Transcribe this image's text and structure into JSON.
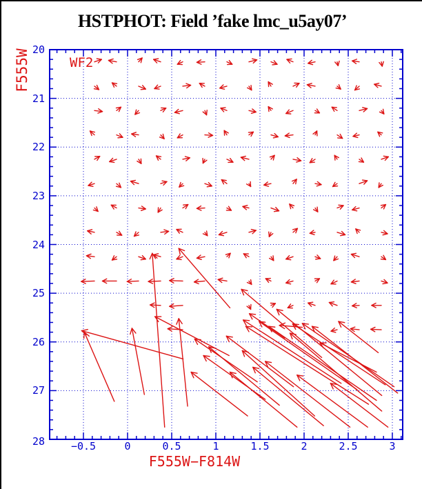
{
  "colors": {
    "axis_and_grid": "#0000cd",
    "tick_labels": "#0000cd",
    "data_vectors": "#dc1414",
    "axis_titles": "#dc1414",
    "title_text": "#000000",
    "background": "#ffffff"
  },
  "chart_data": {
    "type": "scatter",
    "subtype": "quiver-vector-field",
    "title": "HSTPHOT: Field ’fake lmc_u5ay07’",
    "xlabel": "F555W−F814W",
    "ylabel": "F555W",
    "annotation": "WF2",
    "xlim": [
      -0.89,
      3.11
    ],
    "ylim": [
      28,
      20
    ],
    "grid": "dotted blue lines at major ticks",
    "legend": "none",
    "x_tick_values": [
      -0.5,
      0,
      0.5,
      1,
      1.5,
      2,
      2.5,
      3
    ],
    "x_tick_labels": [
      "−0.5",
      "0",
      "0.5",
      "1",
      "1.5",
      "2",
      "2.5",
      "3"
    ],
    "y_tick_values": [
      20,
      21,
      22,
      23,
      24,
      25,
      26,
      27,
      28
    ],
    "y_tick_labels": [
      "20",
      "21",
      "22",
      "23",
      "24",
      "25",
      "26",
      "27",
      "28"
    ],
    "grid_y_values": [
      21,
      22,
      23,
      24,
      25,
      26,
      27
    ],
    "x_minor_step": 0.1,
    "y_minor_step": 0.2,
    "vectors_small": {
      "comment": "photometric bias vectors; tail at grid point (color,mag), displacement [dmag_color, dmag] (positive dmag = fainter/down)",
      "columns": [
        -0.375,
        -0.125,
        0.125,
        0.375,
        0.625,
        0.875,
        1.125,
        1.375,
        1.625,
        1.875,
        2.125,
        2.375,
        2.625,
        2.875
      ],
      "rows": [
        {
          "y": 20.25,
          "d": [
            [
              0.08,
              -0.05
            ],
            [
              -0.09,
              -0.03
            ],
            [
              0.04,
              -0.08
            ],
            [
              -0.08,
              -0.05
            ],
            [
              -0.06,
              0.05
            ],
            [
              -0.09,
              0.01
            ],
            [
              0.06,
              0.05
            ],
            [
              0.09,
              -0.04
            ],
            [
              0.07,
              0.05
            ],
            [
              -0.07,
              -0.05
            ],
            [
              -0.08,
              0.03
            ],
            [
              0.01,
              0.08
            ],
            [
              -0.08,
              -0.02
            ],
            [
              0.01,
              0.09
            ]
          ]
        },
        {
          "y": 20.75,
          "d": [
            [
              0.05,
              0.07
            ],
            [
              -0.05,
              -0.07
            ],
            [
              0.08,
              0.06
            ],
            [
              -0.07,
              0.05
            ],
            [
              0.09,
              -0.02
            ],
            [
              -0.06,
              -0.06
            ],
            [
              -0.08,
              0.04
            ],
            [
              0.03,
              0.08
            ],
            [
              -0.03,
              -0.09
            ],
            [
              0.07,
              -0.06
            ],
            [
              -0.09,
              -0.03
            ],
            [
              0.04,
              0.06
            ],
            [
              -0.05,
              0.08
            ],
            [
              -0.08,
              -0.04
            ]
          ]
        },
        {
          "y": 21.25,
          "d": [
            [
              0.09,
              0.02
            ],
            [
              0.05,
              -0.07
            ],
            [
              -0.04,
              0.08
            ],
            [
              0.06,
              -0.05
            ],
            [
              -0.09,
              0.04
            ],
            [
              0.02,
              0.09
            ],
            [
              -0.07,
              -0.05
            ],
            [
              0.08,
              0.03
            ],
            [
              -0.03,
              -0.08
            ],
            [
              -0.08,
              0.06
            ],
            [
              0.05,
              0.05
            ],
            [
              -0.06,
              -0.07
            ],
            [
              0.09,
              -0.04
            ],
            [
              0.03,
              0.07
            ]
          ]
        },
        {
          "y": 21.75,
          "d": [
            [
              -0.05,
              -0.08
            ],
            [
              0.07,
              0.05
            ],
            [
              -0.08,
              -0.02
            ],
            [
              0.04,
              0.08
            ],
            [
              -0.06,
              0.06
            ],
            [
              0.09,
              0.01
            ],
            [
              -0.03,
              -0.09
            ],
            [
              0.05,
              -0.06
            ],
            [
              0.08,
              0.04
            ],
            [
              -0.09,
              0.02
            ],
            [
              0.02,
              -0.08
            ],
            [
              0.06,
              0.07
            ],
            [
              -0.07,
              0.03
            ],
            [
              -0.04,
              -0.06
            ]
          ]
        },
        {
          "y": 22.25,
          "d": [
            [
              0.06,
              -0.06
            ],
            [
              -0.08,
              0.05
            ],
            [
              0.03,
              0.09
            ],
            [
              -0.05,
              -0.07
            ],
            [
              0.08,
              -0.03
            ],
            [
              -0.02,
              0.08
            ],
            [
              0.07,
              0.06
            ],
            [
              -0.09,
              -0.04
            ],
            [
              0.04,
              -0.08
            ],
            [
              0.09,
              0.03
            ],
            [
              -0.06,
              0.07
            ],
            [
              -0.03,
              -0.08
            ],
            [
              0.05,
              0.06
            ],
            [
              0.08,
              -0.05
            ]
          ]
        },
        {
          "y": 22.75,
          "d": [
            [
              -0.07,
              0.04
            ],
            [
              0.05,
              0.08
            ],
            [
              -0.09,
              -0.05
            ],
            [
              0.07,
              -0.04
            ],
            [
              -0.04,
              0.07
            ],
            [
              0.08,
              0.05
            ],
            [
              -0.06,
              -0.08
            ],
            [
              0.02,
              0.06
            ],
            [
              -0.08,
              0.03
            ],
            [
              0.04,
              -0.09
            ],
            [
              0.07,
              0.02
            ],
            [
              -0.05,
              0.06
            ],
            [
              0.09,
              -0.06
            ],
            [
              -0.03,
              0.08
            ]
          ]
        },
        {
          "y": 23.25,
          "d": [
            [
              0.04,
              0.07
            ],
            [
              -0.06,
              -0.06
            ],
            [
              0.08,
              0.02
            ],
            [
              -0.03,
              0.09
            ],
            [
              0.06,
              -0.07
            ],
            [
              -0.09,
              0.01
            ],
            [
              0.05,
              0.05
            ],
            [
              -0.07,
              -0.03
            ],
            [
              0.09,
              0.06
            ],
            [
              -0.04,
              -0.08
            ],
            [
              0.03,
              0.08
            ],
            [
              0.07,
              -0.05
            ],
            [
              -0.08,
              0.04
            ],
            [
              0.05,
              -0.07
            ]
          ]
        },
        {
          "y": 23.75,
          "d": [
            [
              -0.08,
              -0.03
            ],
            [
              0.06,
              0.06
            ],
            [
              -0.05,
              0.08
            ],
            [
              0.09,
              -0.02
            ],
            [
              -0.07,
              -0.06
            ],
            [
              0.03,
              0.07
            ],
            [
              -0.09,
              0.05
            ],
            [
              0.08,
              -0.04
            ],
            [
              -0.02,
              0.09
            ],
            [
              0.05,
              -0.08
            ],
            [
              -0.06,
              0.02
            ],
            [
              0.09,
              0.05
            ],
            [
              -0.04,
              -0.07
            ],
            [
              0.07,
              0.03
            ]
          ]
        },
        {
          "y": 24.25,
          "d": [
            [
              -0.09,
              -0.02
            ],
            [
              -0.05,
              0.07
            ],
            [
              0.08,
              0.05
            ],
            [
              -0.08,
              -0.04
            ],
            [
              -0.07,
              0.05
            ],
            [
              -0.09,
              0.03
            ],
            [
              0.04,
              -0.07
            ],
            [
              -0.06,
              -0.06
            ],
            [
              0.03,
              0.08
            ],
            [
              -0.08,
              0.05
            ],
            [
              0.06,
              0.04
            ],
            [
              -0.04,
              0.08
            ],
            [
              -0.09,
              -0.05
            ],
            [
              0.05,
              0.06
            ]
          ]
        },
        {
          "y": 24.75,
          "d": [
            [
              -0.15,
              0.01
            ],
            [
              -0.16,
              0.0
            ],
            [
              -0.13,
              0.01
            ],
            [
              -0.14,
              0.01
            ],
            [
              -0.15,
              -0.01
            ],
            [
              -0.12,
              0.02
            ],
            [
              -0.1,
              -0.03
            ],
            [
              0.03,
              0.07
            ],
            [
              -0.06,
              -0.05
            ],
            [
              -0.08,
              0.04
            ],
            [
              0.05,
              -0.05
            ],
            [
              -0.07,
              0.06
            ],
            [
              -0.09,
              0.02
            ],
            [
              0.07,
              0.04
            ]
          ]
        }
      ],
      "extra": [
        [
          0.375,
          25.25,
          -0.12,
          -0.01
        ],
        [
          0.625,
          25.25,
          -0.15,
          0.02
        ],
        [
          1.375,
          25.25,
          0.02,
          0.08
        ],
        [
          1.625,
          25.25,
          0.05,
          -0.04
        ],
        [
          1.875,
          25.25,
          -0.06,
          0.05
        ],
        [
          2.125,
          25.25,
          -0.08,
          -0.05
        ],
        [
          2.375,
          25.25,
          -0.09,
          -0.06
        ],
        [
          2.625,
          25.25,
          -0.08,
          0.01
        ],
        [
          2.875,
          25.25,
          -0.11,
          0.0
        ],
        [
          0.625,
          25.75,
          -0.17,
          -0.02
        ],
        [
          2.375,
          25.75,
          -0.07,
          0.03
        ],
        [
          2.625,
          25.75,
          -0.1,
          -0.02
        ],
        [
          2.875,
          25.75,
          -0.12,
          -0.01
        ]
      ]
    },
    "vectors_long": {
      "comment": "large bias vectors for faint stars: [tail_color, tail_mag, head_color, head_mag]",
      "arrows": [
        [
          0.42,
          27.75,
          0.28,
          24.18
        ],
        [
          0.19,
          27.08,
          0.05,
          25.72
        ],
        [
          -0.15,
          27.22,
          -0.49,
          25.8
        ],
        [
          0.63,
          26.35,
          -0.52,
          25.77
        ],
        [
          0.68,
          27.32,
          0.58,
          25.52
        ],
        [
          1.16,
          25.3,
          0.58,
          24.08
        ],
        [
          1.15,
          26.28,
          0.31,
          25.48
        ],
        [
          2.2,
          26.32,
          1.29,
          24.92
        ],
        [
          2.88,
          27.1,
          1.69,
          25.33
        ],
        [
          2.6,
          26.98,
          1.49,
          25.58
        ],
        [
          2.42,
          26.85,
          1.31,
          25.55
        ],
        [
          2.73,
          27.28,
          1.34,
          25.68
        ],
        [
          2.82,
          27.2,
          1.6,
          25.68
        ],
        [
          2.92,
          26.88,
          1.87,
          25.63
        ],
        [
          3.02,
          26.92,
          1.98,
          25.62
        ],
        [
          3.06,
          27.05,
          2.09,
          25.68
        ],
        [
          2.88,
          27.42,
          1.84,
          25.82
        ],
        [
          2.84,
          26.22,
          2.39,
          25.58
        ],
        [
          1.88,
          26.92,
          1.12,
          25.88
        ],
        [
          2.12,
          27.52,
          1.3,
          26.18
        ],
        [
          1.72,
          27.3,
          0.92,
          26.1
        ],
        [
          1.47,
          26.82,
          0.76,
          25.94
        ],
        [
          2.52,
          27.75,
          1.56,
          26.4
        ],
        [
          2.22,
          27.72,
          1.42,
          26.52
        ],
        [
          1.92,
          27.75,
          1.16,
          26.62
        ],
        [
          2.72,
          27.75,
          1.92,
          26.68
        ],
        [
          1.56,
          27.18,
          0.86,
          26.28
        ],
        [
          1.36,
          27.52,
          0.72,
          26.62
        ],
        [
          2.95,
          27.75,
          2.3,
          26.85
        ],
        [
          2.82,
          26.62,
          2.18,
          26.02
        ],
        [
          1.78,
          25.92,
          1.38,
          25.42
        ],
        [
          1.98,
          25.7,
          1.72,
          25.66
        ]
      ]
    }
  }
}
